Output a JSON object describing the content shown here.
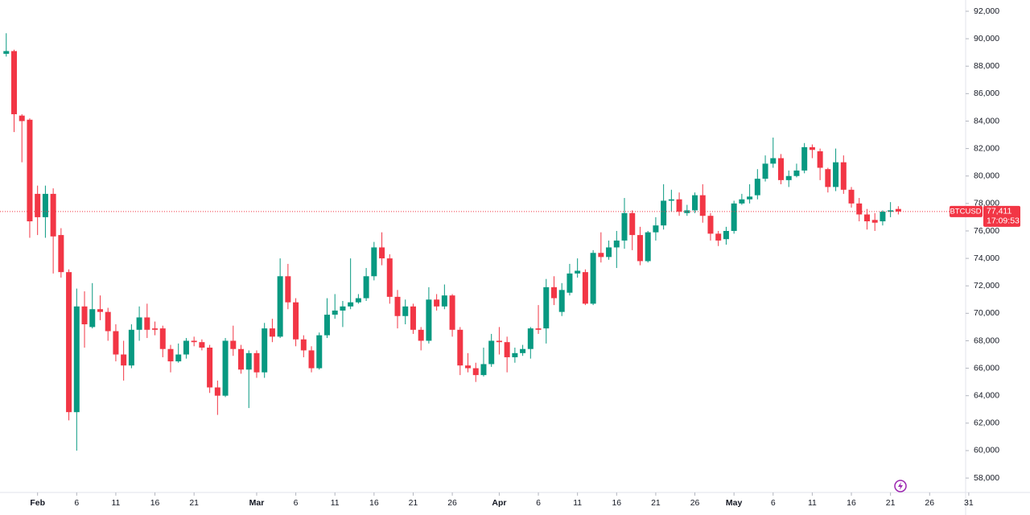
{
  "chart_data": {
    "type": "candlestick",
    "symbol": "BTCUSD",
    "countdown": "17:09:53",
    "last": {
      "value": 77411,
      "label": "77,411"
    },
    "up_color": "#089981",
    "down_color": "#f23645",
    "x": [
      0,
      1,
      2,
      3,
      4,
      5,
      6,
      7,
      8,
      9,
      10,
      11,
      12,
      13,
      14,
      15,
      16,
      17,
      18,
      19,
      20,
      21,
      22,
      23,
      24,
      25,
      26,
      27,
      28,
      29,
      30,
      31,
      32,
      33,
      34,
      35,
      36,
      37,
      38,
      39,
      40,
      41,
      42,
      43,
      44,
      45,
      46,
      47,
      48,
      49,
      50,
      51,
      52,
      53,
      54,
      55,
      56,
      57,
      58,
      59,
      60,
      61,
      62,
      63,
      64,
      65,
      66,
      67,
      68,
      69,
      70,
      71,
      72,
      73,
      74,
      75,
      76,
      77,
      78,
      79,
      80,
      81,
      82,
      83,
      84,
      85,
      86,
      87,
      88,
      89,
      90,
      91,
      92,
      93,
      94,
      95,
      96,
      97,
      98,
      99,
      100,
      101,
      102,
      103,
      104,
      105,
      106,
      107,
      108,
      109,
      110,
      111,
      112,
      113,
      114
    ],
    "open": [
      88900,
      89100,
      84400,
      84100,
      78700,
      77000,
      78700,
      75700,
      73000,
      62800,
      70500,
      69000,
      70300,
      70100,
      68700,
      67000,
      66200,
      68800,
      69700,
      68900,
      68900,
      67400,
      66500,
      67000,
      68000,
      67900,
      67500,
      64600,
      64000,
      68000,
      67400,
      65900,
      67100,
      65700,
      68900,
      68300,
      72700,
      70800,
      68100,
      67300,
      66000,
      68400,
      69900,
      70200,
      70500,
      70800,
      71100,
      72700,
      74800,
      74000,
      71200,
      69800,
      70500,
      68800,
      68000,
      71000,
      70500,
      71300,
      68800,
      66200,
      66000,
      65500,
      66300,
      68000,
      67900,
      66800,
      67100,
      67400,
      68900,
      68900,
      71900,
      70100,
      71500,
      72900,
      73000,
      70700,
      74400,
      74100,
      74800,
      75300,
      77300,
      75700,
      73800,
      75900,
      76400,
      78200,
      78300,
      77300,
      77500,
      78600,
      77100,
      75800,
      75400,
      76000,
      78000,
      78300,
      78600,
      79800,
      80900,
      81300,
      79700,
      80000,
      80400,
      82100,
      81800,
      80500,
      79200,
      81000,
      79000,
      78000,
      77200,
      76800,
      76700,
      77400,
      77600
    ],
    "high": [
      90400,
      89200,
      84500,
      84200,
      79300,
      79300,
      79100,
      76200,
      73200,
      71800,
      71600,
      72200,
      71300,
      70400,
      69200,
      68000,
      69200,
      70500,
      70700,
      69400,
      69100,
      67700,
      67800,
      68200,
      68300,
      68100,
      67700,
      65100,
      68200,
      69100,
      67700,
      67300,
      67300,
      69300,
      69600,
      74000,
      73600,
      71100,
      68400,
      67600,
      68600,
      71100,
      71400,
      70900,
      74000,
      71400,
      73300,
      75200,
      75900,
      74300,
      71700,
      71000,
      70700,
      69000,
      71900,
      71400,
      72100,
      71400,
      69000,
      67100,
      66400,
      67500,
      68500,
      69000,
      68300,
      67500,
      67700,
      69000,
      70600,
      72500,
      72700,
      72200,
      73600,
      74000,
      73200,
      74600,
      75900,
      75300,
      76000,
      78400,
      77500,
      76300,
      76000,
      77000,
      79400,
      79000,
      78800,
      77900,
      78800,
      79400,
      77300,
      76000,
      76300,
      78200,
      78700,
      79400,
      80500,
      81500,
      82800,
      81600,
      80400,
      80900,
      82400,
      82300,
      82000,
      80600,
      82000,
      81500,
      79200,
      78400,
      77600,
      77300,
      77500,
      78100,
      77800
    ],
    "low": [
      88700,
      83200,
      81000,
      75500,
      75700,
      75500,
      72900,
      72600,
      62200,
      60000,
      67500,
      68900,
      69500,
      68000,
      66500,
      65100,
      66000,
      68000,
      68200,
      68400,
      66800,
      65700,
      66400,
      66700,
      67600,
      67300,
      64200,
      62600,
      63900,
      66900,
      65600,
      63100,
      65300,
      65300,
      67900,
      68200,
      70300,
      67600,
      66800,
      65700,
      65900,
      68200,
      69600,
      69000,
      70300,
      70700,
      70900,
      72400,
      73500,
      70700,
      68900,
      69200,
      68500,
      67300,
      67800,
      70200,
      70300,
      68300,
      65500,
      65700,
      65000,
      65400,
      66100,
      67000,
      65700,
      66400,
      66900,
      66700,
      68500,
      67800,
      70600,
      69800,
      71300,
      72600,
      70600,
      70600,
      73700,
      73900,
      73300,
      74700,
      74600,
      73500,
      73700,
      75300,
      76100,
      77400,
      77100,
      77100,
      77300,
      76600,
      75300,
      74900,
      75000,
      75800,
      77900,
      78000,
      78300,
      79600,
      80600,
      79400,
      79200,
      79900,
      80200,
      81300,
      79700,
      78800,
      78900,
      78700,
      77700,
      76700,
      76100,
      76000,
      76400,
      77000,
      77200
    ],
    "close": [
      89100,
      84500,
      84000,
      76700,
      77000,
      78700,
      75600,
      73000,
      62800,
      70500,
      69200,
      70300,
      70100,
      68700,
      67000,
      66200,
      68800,
      69700,
      68800,
      68800,
      67400,
      66500,
      67000,
      68000,
      67900,
      67500,
      64600,
      64000,
      68000,
      67400,
      65900,
      67100,
      65700,
      68900,
      68300,
      72700,
      70800,
      68100,
      67300,
      66000,
      68400,
      69900,
      70200,
      70500,
      70800,
      71100,
      72700,
      74800,
      74000,
      71200,
      69800,
      70500,
      68800,
      68000,
      71000,
      70500,
      71300,
      68800,
      66200,
      66000,
      65500,
      66300,
      68000,
      67900,
      66800,
      67100,
      67400,
      68900,
      68800,
      71900,
      71100,
      71700,
      72900,
      73100,
      70700,
      74400,
      74100,
      74800,
      75300,
      77300,
      75700,
      73800,
      75900,
      76400,
      78200,
      78300,
      77400,
      77500,
      78600,
      77100,
      75800,
      75300,
      76000,
      78000,
      78300,
      78500,
      79800,
      80900,
      81300,
      79700,
      80000,
      80400,
      82100,
      81900,
      80600,
      79200,
      81000,
      79000,
      78000,
      77200,
      76700,
      76600,
      77400,
      77500,
      77411
    ],
    "xlim": [
      -0.8,
      122.6
    ],
    "xticks": [
      {
        "value": 4,
        "label": "Feb"
      },
      {
        "value": 9,
        "label": "6"
      },
      {
        "value": 14,
        "label": "11"
      },
      {
        "value": 19,
        "label": "16"
      },
      {
        "value": 24,
        "label": "21"
      },
      {
        "value": 32,
        "label": "Mar"
      },
      {
        "value": 37,
        "label": "6"
      },
      {
        "value": 42,
        "label": "11"
      },
      {
        "value": 47,
        "label": "16"
      },
      {
        "value": 52,
        "label": "21"
      },
      {
        "value": 57,
        "label": "26"
      },
      {
        "value": 63,
        "label": "Apr"
      },
      {
        "value": 68,
        "label": "6"
      },
      {
        "value": 73,
        "label": "11"
      },
      {
        "value": 78,
        "label": "16"
      },
      {
        "value": 83,
        "label": "21"
      },
      {
        "value": 88,
        "label": "26"
      },
      {
        "value": 93,
        "label": "May"
      },
      {
        "value": 98,
        "label": "6"
      },
      {
        "value": 103,
        "label": "11"
      },
      {
        "value": 108,
        "label": "16"
      },
      {
        "value": 113,
        "label": "21"
      },
      {
        "value": 118,
        "label": "26"
      },
      {
        "value": 123,
        "label": "31"
      }
    ],
    "ylim": [
      56950,
      92820
    ],
    "yticks": [
      {
        "value": 58000,
        "label": "58,000"
      },
      {
        "value": 60000,
        "label": "60,000"
      },
      {
        "value": 62000,
        "label": "62,000"
      },
      {
        "value": 64000,
        "label": "64,000"
      },
      {
        "value": 66000,
        "label": "66,000"
      },
      {
        "value": 68000,
        "label": "68,000"
      },
      {
        "value": 70000,
        "label": "70,000"
      },
      {
        "value": 72000,
        "label": "72,000"
      },
      {
        "value": 74000,
        "label": "74,000"
      },
      {
        "value": 76000,
        "label": "76,000"
      },
      {
        "value": 78000,
        "label": "78,000"
      },
      {
        "value": 80000,
        "label": "80,000"
      },
      {
        "value": 82000,
        "label": "82,000"
      },
      {
        "value": 84000,
        "label": "84,000"
      },
      {
        "value": 86000,
        "label": "86,000"
      },
      {
        "value": 88000,
        "label": "88,000"
      },
      {
        "value": 90000,
        "label": "90,000"
      },
      {
        "value": 92000,
        "label": "92,000"
      }
    ]
  }
}
